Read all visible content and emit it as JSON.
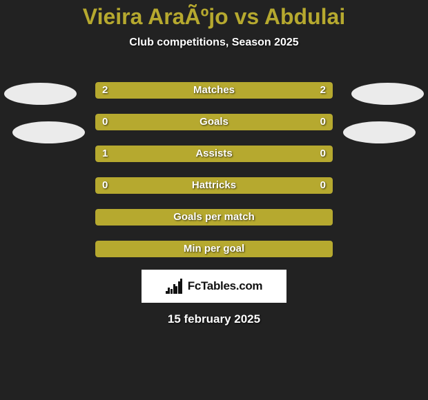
{
  "title": "Vieira AraÃºjo vs Abdulai",
  "subtitle": "Club competitions, Season 2025",
  "date": "15 february 2025",
  "logo_text": "FcTables.com",
  "colors": {
    "bg": "#222222",
    "accent": "#b6a92f",
    "bar_track": "#444444",
    "bar_fill": "#b6a92f",
    "text": "#ffffff"
  },
  "logo_bars_heights": [
    4,
    9,
    7,
    14,
    11,
    18,
    22
  ],
  "stats": [
    {
      "label": "Matches",
      "left_val": "2",
      "right_val": "2",
      "left_pct": 50,
      "right_pct": 50
    },
    {
      "label": "Goals",
      "left_val": "0",
      "right_val": "0",
      "left_pct": 50,
      "right_pct": 50
    },
    {
      "label": "Assists",
      "left_val": "1",
      "right_val": "0",
      "left_pct": 77,
      "right_pct": 23
    },
    {
      "label": "Hattricks",
      "left_val": "0",
      "right_val": "0",
      "left_pct": 50,
      "right_pct": 50
    },
    {
      "label": "Goals per match",
      "left_val": "",
      "right_val": "",
      "left_pct": 100,
      "right_pct": 0
    },
    {
      "label": "Min per goal",
      "left_val": "",
      "right_val": "",
      "left_pct": 100,
      "right_pct": 0
    }
  ]
}
